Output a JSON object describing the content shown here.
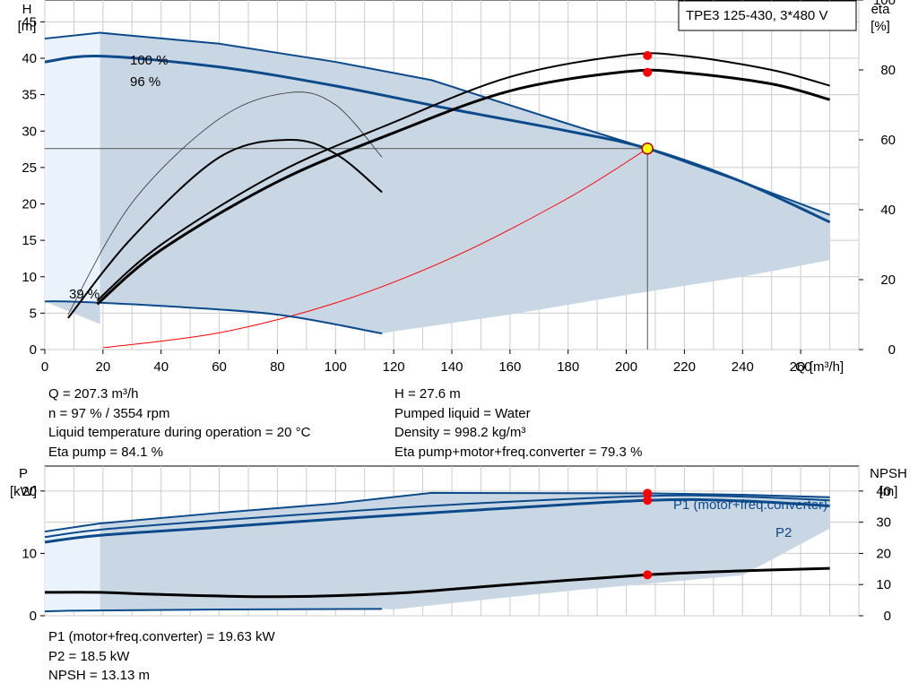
{
  "colors": {
    "curve": "#0b4a8b",
    "area": "#c9d6e3",
    "area_light": "#eaf3fb",
    "grid": "#cccccc",
    "point_red": "#ff0000",
    "point_yellow": "#ffff00",
    "system_curve": "#ff0000",
    "pump_eff": "#000000"
  },
  "chart_data": [
    {
      "type": "line",
      "panel": "head_efficiency",
      "title_box": "TPE3 125-430, 3*480 V",
      "xlabel": "Q [m³/h]",
      "ylabel_left": [
        "H",
        "[m]"
      ],
      "ylabel_right": [
        "eta",
        "[%]"
      ],
      "xlim": [
        0,
        280
      ],
      "x_ticks": [
        0,
        20,
        40,
        60,
        80,
        100,
        120,
        140,
        160,
        180,
        200,
        220,
        240,
        260
      ],
      "ylim": [
        0,
        48
      ],
      "y_ticks": [
        0,
        5,
        10,
        15,
        20,
        25,
        30,
        35,
        40,
        45
      ],
      "y2lim": [
        0,
        100
      ],
      "y2_ticks": [
        0,
        20,
        40,
        60,
        80,
        100
      ],
      "grid": true,
      "speed_labels": [
        "100 %",
        "96 %",
        "39 %"
      ],
      "series": [
        {
          "name": "100 %",
          "axis": "left",
          "x": [
            0,
            19,
            60,
            100,
            133,
            180,
            207.3,
            240,
            270
          ],
          "y": [
            42.7,
            43.5,
            42.0,
            39.5,
            37.0,
            31.0,
            27.6,
            23.0,
            18.5
          ]
        },
        {
          "name": "96 %",
          "axis": "left",
          "x": [
            0,
            19,
            60,
            100,
            140,
            180,
            207.3,
            240,
            270
          ],
          "y": [
            39.5,
            40.3,
            38.8,
            36.2,
            33.0,
            30.0,
            27.6,
            23.0,
            17.5
          ]
        },
        {
          "name": "39 %",
          "axis": "left",
          "x": [
            0,
            8,
            40,
            80,
            116
          ],
          "y": [
            6.6,
            6.6,
            6.0,
            4.8,
            2.2
          ]
        },
        {
          "axis": "left",
          "role": "operating_band_boundary",
          "x": [
            120,
            160,
            200,
            240,
            270
          ],
          "y": [
            2.5,
            4.8,
            7.5,
            10.0,
            12.3
          ]
        },
        {
          "axis": "left",
          "role": "system_curve",
          "x": [
            20,
            60,
            100,
            140,
            180,
            207.3
          ],
          "y": [
            0.25,
            2.3,
            6.4,
            12.6,
            20.8,
            27.6
          ]
        },
        {
          "axis": "right",
          "role": "eta_pump",
          "x": [
            18,
            40,
            80,
            120,
            160,
            200,
            220,
            250,
            270
          ],
          "y": [
            14.0,
            30.0,
            50.5,
            65.0,
            78.0,
            84.2,
            84.0,
            80.0,
            75.5
          ]
        },
        {
          "axis": "right",
          "role": "eta_total",
          "x": [
            18,
            40,
            80,
            120,
            160,
            200,
            220,
            250,
            270
          ],
          "y": [
            13.0,
            28.5,
            48.0,
            62.0,
            74.0,
            79.5,
            79.2,
            76.0,
            71.5
          ]
        },
        {
          "axis": "right",
          "role": "eta_pump_low_speed",
          "x": [
            8,
            30,
            60,
            84,
            100,
            116
          ],
          "y": [
            10.0,
            42.0,
            66.0,
            73.5,
            70.0,
            55.0
          ]
        },
        {
          "axis": "right",
          "role": "eta_total_low_speed",
          "x": [
            8,
            30,
            60,
            84,
            100,
            116
          ],
          "y": [
            9.0,
            32.0,
            55.0,
            60.0,
            56.0,
            45.0
          ]
        }
      ],
      "duty_point": {
        "Q": 207.3,
        "H": 27.6,
        "eta_pump": 84.1,
        "eta_total": 79.3
      }
    },
    {
      "type": "line",
      "panel": "power_npsh",
      "ylabel_left": [
        "P",
        "[kW]"
      ],
      "ylabel_right": [
        "NPSH",
        "[m]"
      ],
      "xlim": [
        0,
        280
      ],
      "ylim": [
        0,
        24
      ],
      "y_ticks": [
        0,
        10,
        20
      ],
      "y2lim": [
        0,
        48
      ],
      "y2_ticks": [
        0,
        10,
        20,
        30,
        40
      ],
      "grid": true,
      "series_labels": [
        "P1 (motor+freq.converter)",
        "P2"
      ],
      "series": [
        {
          "name": "P1 (motor+freq.converter)",
          "axis": "left",
          "x": [
            0,
            19,
            60,
            100,
            133,
            207.3,
            240,
            270
          ],
          "y": [
            13.5,
            14.8,
            16.5,
            18.0,
            19.7,
            19.63,
            19.4,
            19.0
          ]
        },
        {
          "axis": "left",
          "role": "P1_96",
          "x": [
            0,
            19,
            60,
            100,
            140,
            207.3,
            240,
            270
          ],
          "y": [
            12.6,
            13.8,
            15.3,
            16.6,
            17.8,
            19.2,
            19.1,
            18.5
          ]
        },
        {
          "name": "P2",
          "axis": "left",
          "x": [
            0,
            19,
            60,
            100,
            140,
            207.3,
            240,
            270
          ],
          "y": [
            11.8,
            12.9,
            14.2,
            15.5,
            16.7,
            18.5,
            18.4,
            17.6
          ]
        },
        {
          "axis": "left",
          "role": "P_39",
          "x": [
            0,
            8,
            60,
            116
          ],
          "y": [
            0.7,
            0.8,
            1.0,
            1.1
          ]
        },
        {
          "axis": "left",
          "role": "band_bottom",
          "x": [
            120,
            180,
            240,
            270
          ],
          "y": [
            1.0,
            4.0,
            6.5,
            14.0
          ]
        },
        {
          "name": "NPSH",
          "axis": "right",
          "x": [
            0,
            19,
            40,
            80,
            120,
            160,
            207.3,
            240,
            270
          ],
          "y": [
            7.5,
            7.5,
            6.8,
            6.1,
            7.2,
            10.0,
            13.13,
            14.4,
            15.2
          ]
        }
      ],
      "duty_point": {
        "Q": 207.3,
        "P1": 19.63,
        "P2": 18.5,
        "NPSH": 13.13
      }
    }
  ],
  "info_top_left": [
    "Q = 207.3 m³/h",
    "n = 97 % / 3554 rpm",
    "Liquid temperature during operation = 20 °C",
    "Eta pump = 84.1 %"
  ],
  "info_top_right": [
    "H = 27.6 m",
    "Pumped liquid = Water",
    "Density = 998.2 kg/m³",
    "Eta pump+motor+freq.converter = 79.3 %"
  ],
  "info_bottom": [
    "P1 (motor+freq.converter) = 19.63 kW",
    "P2 = 18.5 kW",
    "NPSH = 13.13 m"
  ]
}
